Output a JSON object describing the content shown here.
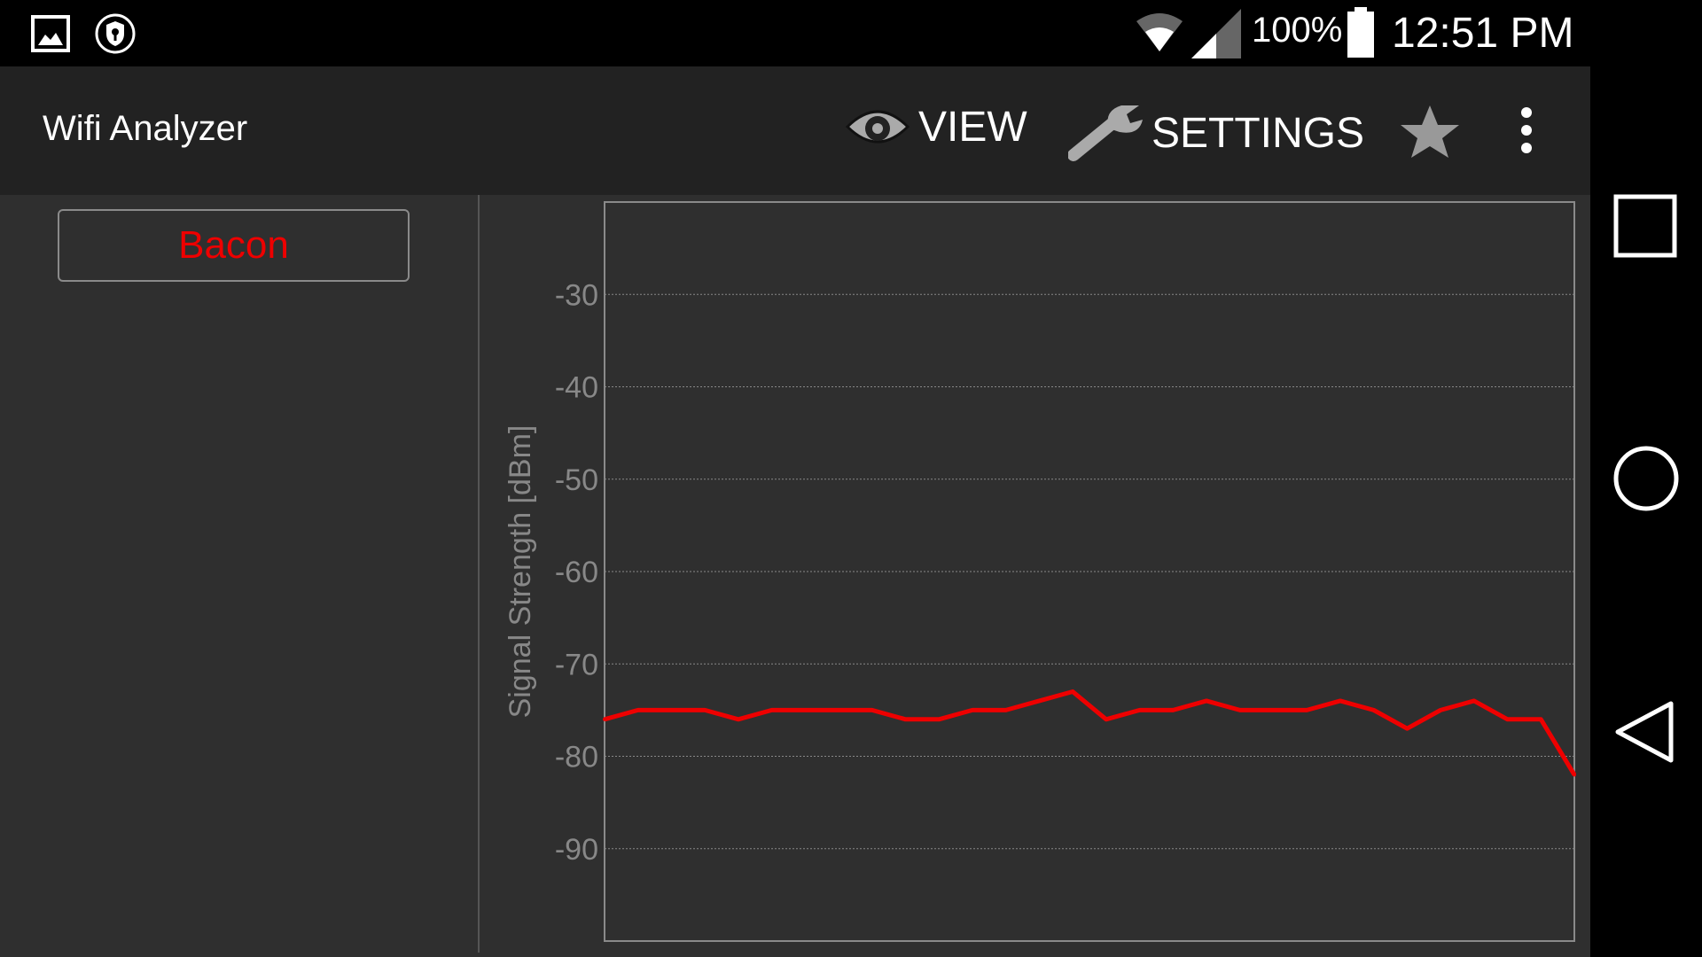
{
  "status_bar": {
    "battery": "100%",
    "time": "12:51 PM",
    "icons": [
      "image-icon",
      "vpn-shield-icon",
      "wifi-icon",
      "cell-signal-icon",
      "battery-icon"
    ]
  },
  "action_bar": {
    "title": "Wifi Analyzer",
    "view_label": "VIEW",
    "settings_label": "SETTINGS",
    "icons": [
      "eye-icon",
      "wrench-icon",
      "star-icon",
      "overflow-menu-icon"
    ]
  },
  "networks": [
    {
      "ssid": "Bacon",
      "color": "#ee0000"
    }
  ],
  "nav_bar": {
    "icons": [
      "recents-icon",
      "home-icon",
      "back-icon"
    ]
  },
  "chart_data": {
    "type": "line",
    "ylabel": "Signal Strength [dBm]",
    "ylim": [
      -100,
      -20
    ],
    "yticks": [
      -30,
      -40,
      -50,
      -60,
      -70,
      -80,
      -90
    ],
    "grid": true,
    "series": [
      {
        "name": "Bacon",
        "color": "#ee0000",
        "values": [
          -76,
          -75,
          -75,
          -75,
          -76,
          -75,
          -75,
          -75,
          -75,
          -76,
          -76,
          -75,
          -75,
          -74,
          -73,
          -76,
          -75,
          -75,
          -74,
          -75,
          -75,
          -75,
          -74,
          -75,
          -77,
          -75,
          -74,
          -76,
          -76,
          -82
        ]
      }
    ]
  }
}
